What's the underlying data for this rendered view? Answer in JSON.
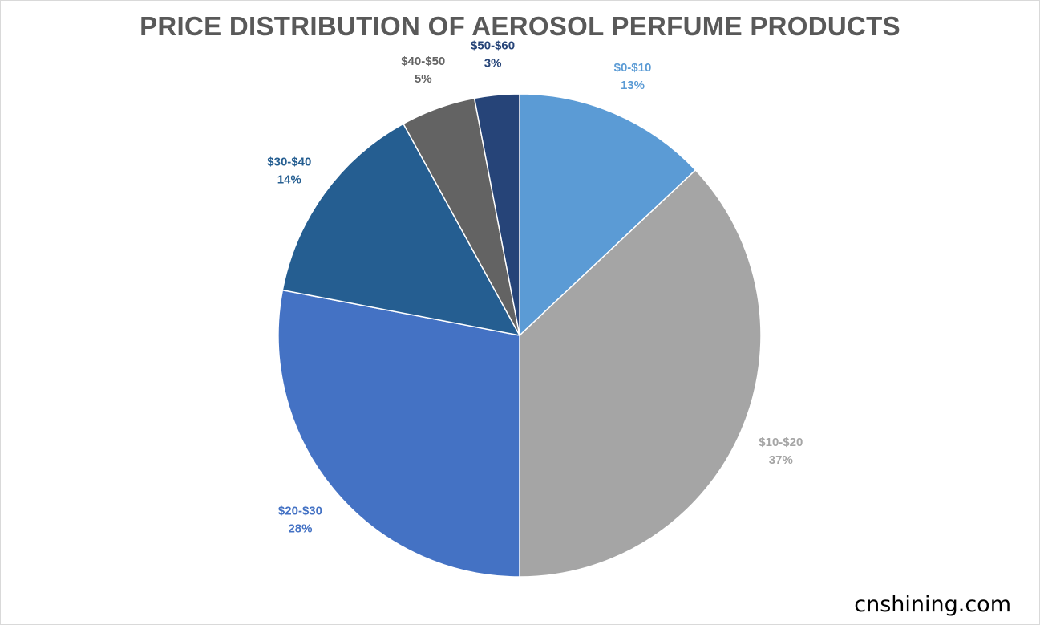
{
  "chart_data": {
    "type": "pie",
    "title": "PRICE DISTRIBUTION OF AEROSOL PERFUME PRODUCTS",
    "categories": [
      "$0-$10",
      "$10-$20",
      "$20-$30",
      "$30-$40",
      "$40-$50",
      "$50-$60"
    ],
    "values": [
      13,
      37,
      28,
      14,
      5,
      3
    ],
    "value_labels": [
      "13%",
      "37%",
      "28%",
      "14%",
      "5%",
      "3%"
    ],
    "colors": [
      "#5b9bd5",
      "#a5a5a5",
      "#4472c4",
      "#255e91",
      "#636363",
      "#264478"
    ],
    "start_angle": "12 o'clock",
    "direction": "clockwise",
    "legend": "none",
    "data_labels": "outside"
  },
  "watermark": "cnshining.com"
}
